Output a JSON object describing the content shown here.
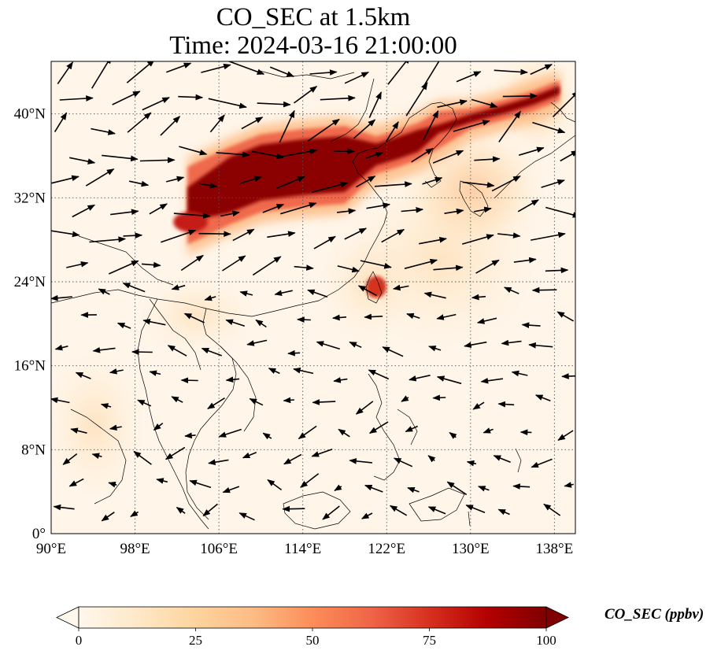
{
  "title": {
    "line1": "CO_SEC at 1.5km",
    "line2": "Time: 2024-03-16 21:00:00"
  },
  "map": {
    "projection": "PlateCarree",
    "lon_range": [
      90,
      140
    ],
    "lat_range": [
      0,
      45
    ],
    "gridlines": "dotted",
    "lat_ticks": [
      {
        "value": 0,
        "label": "0°"
      },
      {
        "value": 8,
        "label": "8°N"
      },
      {
        "value": 16,
        "label": "16°N"
      },
      {
        "value": 24,
        "label": "24°N"
      },
      {
        "value": 32,
        "label": "32°N"
      },
      {
        "value": 40,
        "label": "40°N"
      }
    ],
    "lon_ticks": [
      {
        "value": 90,
        "label": "90°E"
      },
      {
        "value": 98,
        "label": "98°E"
      },
      {
        "value": 106,
        "label": "106°E"
      },
      {
        "value": 114,
        "label": "114°E"
      },
      {
        "value": 122,
        "label": "122°E"
      },
      {
        "value": 130,
        "label": "130°E"
      },
      {
        "value": 138,
        "label": "138°E"
      }
    ],
    "plume_core": [
      [
        103,
        31.5
      ],
      [
        107,
        33.4
      ],
      [
        110,
        34.6
      ],
      [
        114,
        35.1
      ],
      [
        118,
        35.4
      ],
      [
        121,
        36.2
      ],
      [
        123,
        36.8
      ],
      [
        125,
        37.5
      ],
      [
        127,
        38.6
      ],
      [
        130,
        39.6
      ],
      [
        133,
        40.4
      ],
      [
        136,
        41.3
      ],
      [
        138.5,
        42.3
      ]
    ],
    "taiwan_hotspot": [
      121,
      23.5
    ]
  },
  "colorbar": {
    "label": "CO_SEC (ppbv)",
    "colormap": "OrRd",
    "colors": [
      "#fff7ec",
      "#fee8c8",
      "#fdd49e",
      "#fdbb84",
      "#fc8d59",
      "#ef6548",
      "#d7301f",
      "#b30000",
      "#7f0000"
    ],
    "extend": "both",
    "vmin": 0,
    "vmax": 100,
    "ticks": [
      {
        "value": 0,
        "label": "0"
      },
      {
        "value": 25,
        "label": "25"
      },
      {
        "value": 50,
        "label": "50"
      },
      {
        "value": 75,
        "label": "75"
      },
      {
        "value": 100,
        "label": "100"
      }
    ]
  }
}
